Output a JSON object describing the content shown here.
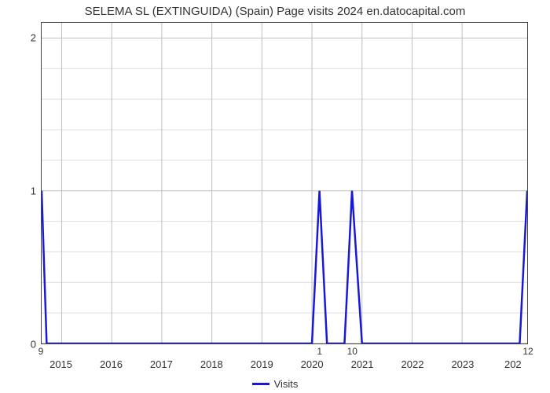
{
  "chart": {
    "type": "line",
    "title": "SELEMA SL (EXTINGUIDA) (Spain) Page visits 2024 en.datocapital.com",
    "title_fontsize": 15,
    "title_color": "#333333",
    "background_color": "#ffffff",
    "plot_border_color": "#444444",
    "grid_major_color": "#bfbfbf",
    "grid_minor_color": "#dddddd",
    "line_color": "#1818d8",
    "line_width": 2.5,
    "x_axis": {
      "ticks": [
        2015,
        2016,
        2017,
        2018,
        2019,
        2020,
        2021,
        2022,
        2023
      ],
      "xlim": [
        2014.6,
        2024.3
      ],
      "tick_fontsize": 13,
      "tick_color": "#333333"
    },
    "y_axis": {
      "ticks": [
        0,
        1,
        2
      ],
      "ylim": [
        0,
        2.1
      ],
      "minor_count_between": 4,
      "tick_fontsize": 13,
      "tick_color": "#333333"
    },
    "series": {
      "name": "Visits",
      "points": [
        {
          "x": 2014.6,
          "y": 1.0,
          "label": "9"
        },
        {
          "x": 2014.7,
          "y": 0.0,
          "label": ""
        },
        {
          "x": 2020.0,
          "y": 0.0,
          "label": ""
        },
        {
          "x": 2020.15,
          "y": 1.0,
          "label": "1"
        },
        {
          "x": 2020.3,
          "y": 0.0,
          "label": ""
        },
        {
          "x": 2020.65,
          "y": 0.0,
          "label": ""
        },
        {
          "x": 2020.8,
          "y": 1.0,
          "label": "10"
        },
        {
          "x": 2021.0,
          "y": 0.0,
          "label": ""
        },
        {
          "x": 2024.15,
          "y": 0.0,
          "label": ""
        },
        {
          "x": 2024.3,
          "y": 1.0,
          "label": "12"
        }
      ]
    },
    "legend": {
      "label": "Visits",
      "swatch_color": "#1818d8",
      "fontsize": 13
    }
  }
}
